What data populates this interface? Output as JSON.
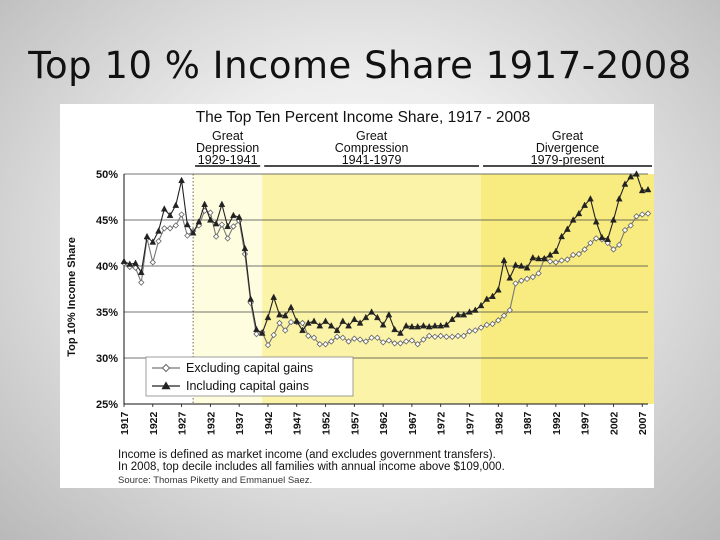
{
  "slide": {
    "title": "Top 10 % Income Share 1917-2008"
  },
  "chart_data": {
    "type": "line",
    "title": "The Top Ten Percent Income Share, 1917 - 2008",
    "ylabel": "Top 10% Income Share",
    "xlabel": "",
    "ylim": [
      25,
      50
    ],
    "xlim": [
      1917,
      2008
    ],
    "yticks": [
      "25%",
      "30%",
      "35%",
      "40%",
      "45%",
      "50%"
    ],
    "xticks": [
      "1917",
      "1922",
      "1927",
      "1932",
      "1937",
      "1942",
      "1947",
      "1952",
      "1957",
      "1962",
      "1967",
      "1972",
      "1977",
      "1982",
      "1987",
      "1992",
      "1997",
      "2002",
      "2007"
    ],
    "grid": "horizontal",
    "legend": "bottom-left",
    "eras": [
      {
        "line1": "Great",
        "line2": "Depression",
        "range": "1929-1941",
        "start": 1929,
        "end": 1941,
        "color": "#fffde0"
      },
      {
        "line1": "Great",
        "line2": "Compression",
        "range": "1941-1979",
        "start": 1941,
        "end": 1979,
        "color": "#fbf3a8"
      },
      {
        "line1": "Great",
        "line2": "Divergence",
        "range": "1979-present",
        "start": 1979,
        "end": 2008,
        "color": "#f8eb80"
      }
    ],
    "series": [
      {
        "name": "Excluding capital gains",
        "marker": "open-diamond",
        "values": [
          40.3,
          39.9,
          39.8,
          38.2,
          43.0,
          40.4,
          42.7,
          44.1,
          44.1,
          44.4,
          45.6,
          43.3,
          43.8,
          44.4,
          46.0,
          45.8,
          43.2,
          44.5,
          43.0,
          44.3,
          44.9,
          41.3,
          36.0,
          32.6,
          32.8,
          31.4,
          32.5,
          33.8,
          33.0,
          33.9,
          33.9,
          33.8,
          32.4,
          32.2,
          31.5,
          31.5,
          31.8,
          32.3,
          32.2,
          31.8,
          32.1,
          32.0,
          31.8,
          32.2,
          32.2,
          31.7,
          31.9,
          31.6,
          31.6,
          31.8,
          31.9,
          31.5,
          32.0,
          32.4,
          32.3,
          32.4,
          32.3,
          32.3,
          32.4,
          32.4,
          32.9,
          33.0,
          33.3,
          33.6,
          33.7,
          34.1,
          34.6,
          35.2,
          38.1,
          38.4,
          38.6,
          38.8,
          39.2,
          40.8,
          40.5,
          40.4,
          40.6,
          40.7,
          41.2,
          41.3,
          41.8,
          42.5,
          43.0,
          42.9,
          42.5,
          41.8,
          42.3,
          43.9,
          44.4,
          45.4,
          45.6,
          45.7
        ]
      },
      {
        "name": "Including capital gains",
        "marker": "filled-triangle",
        "values": [
          40.5,
          40.2,
          40.3,
          39.3,
          43.2,
          42.6,
          43.8,
          46.2,
          45.5,
          46.6,
          49.3,
          44.5,
          43.6,
          44.8,
          46.7,
          45.0,
          44.6,
          46.7,
          44.3,
          45.5,
          45.3,
          41.9,
          36.4,
          33.1,
          32.7,
          34.4,
          36.6,
          34.7,
          34.6,
          35.5,
          34.0,
          33.0,
          33.8,
          34.0,
          33.5,
          34.0,
          33.5,
          33.0,
          34.0,
          33.5,
          34.2,
          33.8,
          34.4,
          35.0,
          34.4,
          33.6,
          34.7,
          33.1,
          32.7,
          33.5,
          33.4,
          33.4,
          33.5,
          33.4,
          33.5,
          33.5,
          33.6,
          34.2,
          34.7,
          34.7,
          35.0,
          35.2,
          35.7,
          36.4,
          36.7,
          37.4,
          40.6,
          38.7,
          40.1,
          40.0,
          39.8,
          40.9,
          40.8,
          40.8,
          41.2,
          41.6,
          43.2,
          44.0,
          45.0,
          45.7,
          46.6,
          47.3,
          44.8,
          43.1,
          42.9,
          45.0,
          47.3,
          48.9,
          49.7,
          50.0,
          48.2,
          48.3
        ]
      }
    ]
  },
  "figure_notes": {
    "note1": "Income is defined as market income (and excludes government transfers).",
    "note2": "In 2008, top decile includes all families with annual income above $109,000.",
    "source": "Source: Thomas Piketty and Emmanuel Saez."
  }
}
